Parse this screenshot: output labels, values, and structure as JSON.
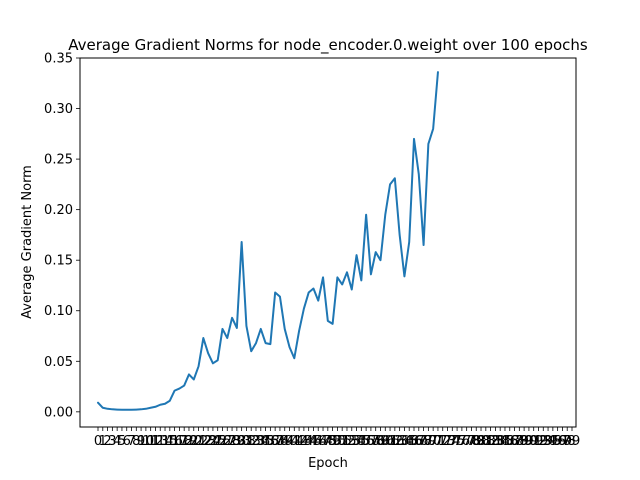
{
  "chart_data": {
    "type": "line",
    "title": "Average Gradient Norms for node_encoder.0.weight over 100 epochs",
    "xlabel": "Epoch",
    "ylabel": "Average Gradient Norm",
    "xlim": [
      0,
      99
    ],
    "ylim": [
      -0.015,
      0.35
    ],
    "grid": false,
    "series_color": "#1f77b4",
    "x_ticks": [
      "0",
      "1",
      "2",
      "3",
      "4",
      "5",
      "6",
      "7",
      "8",
      "9",
      "10",
      "11",
      "12",
      "13",
      "14",
      "15",
      "16",
      "17",
      "18",
      "19",
      "20",
      "21",
      "22",
      "23",
      "24",
      "25",
      "26",
      "27",
      "28",
      "29",
      "30",
      "31",
      "32",
      "33",
      "34",
      "35",
      "36",
      "37",
      "38",
      "39",
      "40",
      "41",
      "42",
      "43",
      "44",
      "45",
      "46",
      "47",
      "48",
      "49",
      "50",
      "51",
      "52",
      "53",
      "54",
      "55",
      "56",
      "57",
      "58",
      "59",
      "60",
      "61",
      "62",
      "63",
      "64",
      "65",
      "66",
      "67",
      "68",
      "69",
      "70",
      "71",
      "72",
      "73",
      "74",
      "75",
      "76",
      "77",
      "78",
      "79",
      "80",
      "81",
      "82",
      "83",
      "84",
      "85",
      "86",
      "87",
      "88",
      "89",
      "90",
      "91",
      "92",
      "93",
      "94",
      "95",
      "96",
      "97",
      "98",
      "99"
    ],
    "y_ticks": [
      "0.00",
      "0.05",
      "0.10",
      "0.15",
      "0.20",
      "0.25",
      "0.30",
      "0.35"
    ],
    "y_tick_values": [
      0.0,
      0.05,
      0.1,
      0.15,
      0.2,
      0.25,
      0.3,
      0.35
    ],
    "series": [
      {
        "x": [
          0,
          1,
          2,
          3,
          4,
          5,
          6,
          7,
          8,
          9,
          10,
          11,
          12,
          13,
          14,
          15,
          16,
          17,
          18,
          19,
          20,
          21,
          22,
          23,
          24,
          25,
          26,
          27,
          28,
          29,
          30,
          31,
          32,
          33,
          34,
          35,
          36,
          37,
          38,
          39,
          40,
          41,
          42,
          43,
          44,
          45,
          46,
          47,
          48,
          49,
          50,
          51,
          52,
          53,
          54,
          55,
          56,
          57,
          58,
          59,
          60,
          61,
          62,
          63,
          64,
          65,
          66,
          67,
          68,
          69,
          70,
          71,
          72,
          73,
          74
        ],
        "values": [
          0.009,
          0.004,
          0.003,
          0.0025,
          0.0022,
          0.002,
          0.002,
          0.002,
          0.0022,
          0.0025,
          0.003,
          0.004,
          0.005,
          0.007,
          0.008,
          0.011,
          0.021,
          0.023,
          0.026,
          0.037,
          0.032,
          0.045,
          0.073,
          0.058,
          0.048,
          0.051,
          0.082,
          0.073,
          0.093,
          0.083,
          0.168,
          0.085,
          0.06,
          0.068,
          0.082,
          0.068,
          0.067,
          0.118,
          0.114,
          0.082,
          0.064,
          0.053,
          0.08,
          0.102,
          0.118,
          0.122,
          0.11,
          0.133,
          0.09,
          0.087,
          0.133,
          0.126,
          0.138,
          0.121,
          0.155,
          0.13,
          0.195,
          0.136,
          0.158,
          0.15,
          0.195,
          0.225,
          0.231,
          0.175,
          0.134,
          0.168,
          0.27,
          0.235,
          0.165,
          0.265,
          0.28,
          0.336,
          null,
          null,
          null
        ]
      }
    ]
  }
}
